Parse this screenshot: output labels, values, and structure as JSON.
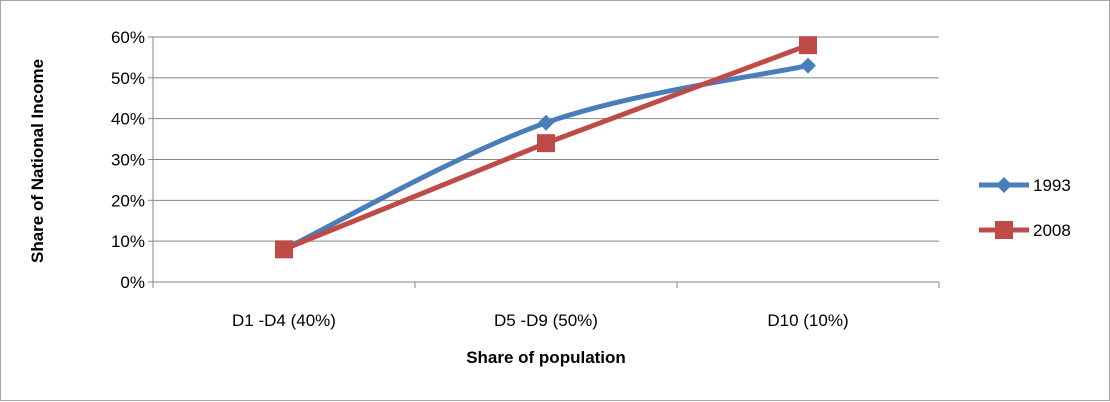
{
  "chart_data": {
    "type": "line",
    "categories": [
      "D1 -D4 (40%)",
      "D5 -D9 (50%)",
      "D10 (10%)"
    ],
    "series": [
      {
        "name": "1993",
        "values": [
          0.08,
          0.39,
          0.53
        ],
        "color": "#4a7ebb",
        "marker": "diamond",
        "smooth": true
      },
      {
        "name": "2008",
        "values": [
          0.08,
          0.34,
          0.58
        ],
        "color": "#be4b48",
        "marker": "square",
        "smooth": false
      }
    ],
    "xlabel": "Share of population",
    "ylabel": "Share of National Income",
    "ylim": [
      0,
      0.6
    ],
    "yticks": [
      "0%",
      "10%",
      "20%",
      "30%",
      "40%",
      "50%",
      "60%"
    ],
    "grid": true,
    "legend": "right"
  }
}
